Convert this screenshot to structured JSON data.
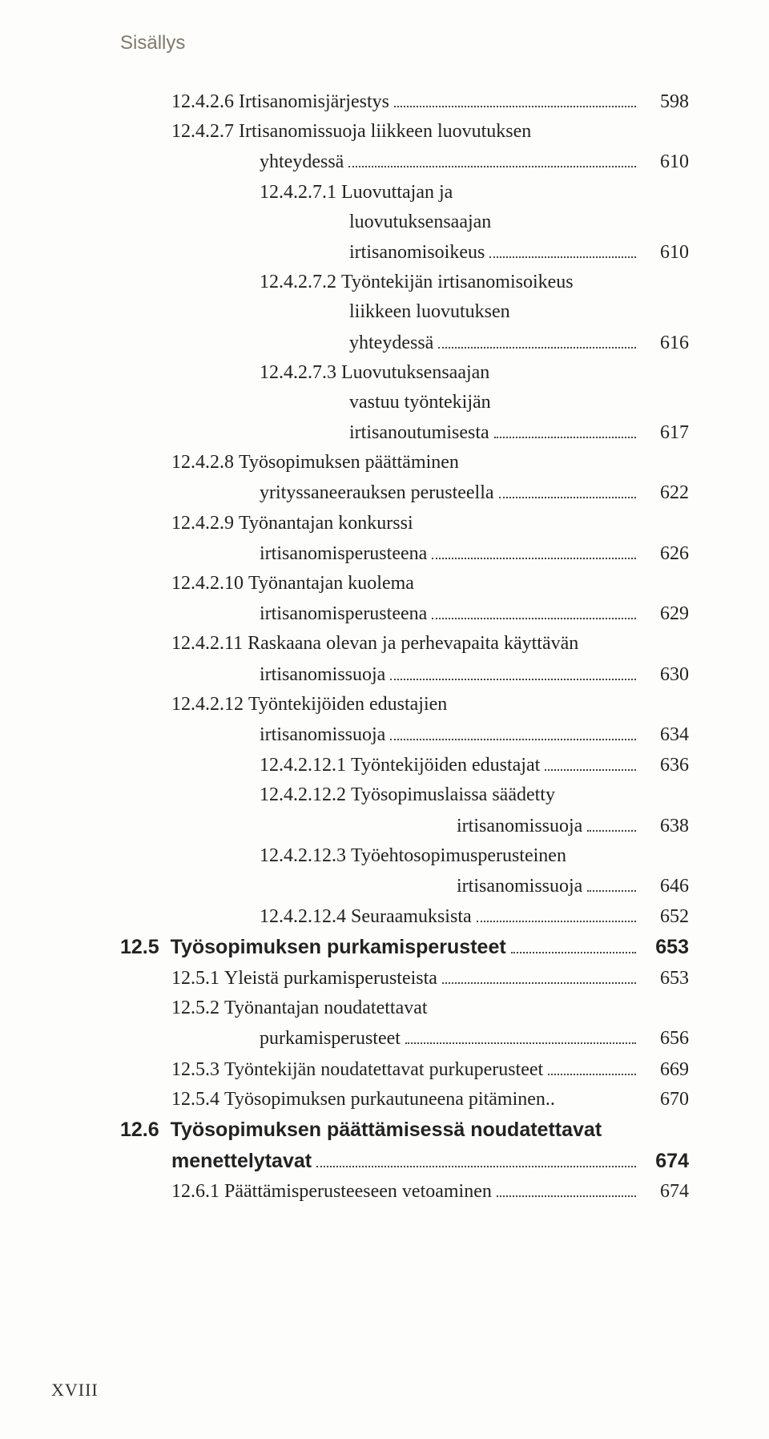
{
  "running_head": "Sisällys",
  "folio": "XVIII",
  "entries": [
    {
      "type": "item",
      "indent": 1,
      "num": "12.4.2.6",
      "label": "Irtisanomisjärjestys",
      "page": "598"
    },
    {
      "type": "item",
      "indent": 1,
      "num": "12.4.2.7",
      "label": "Irtisanomissuoja liikkeen luovutuksen"
    },
    {
      "type": "cont",
      "indent": 1,
      "label": "yhteydessä",
      "page": "610"
    },
    {
      "type": "item",
      "indent": 2,
      "num": "12.4.2.7.1",
      "label": "Luovuttajan ja"
    },
    {
      "type": "cont",
      "indent": 2,
      "label": "luovutuksensaajan"
    },
    {
      "type": "cont",
      "indent": 2,
      "label": "irtisanomisoikeus",
      "page": "610"
    },
    {
      "type": "item",
      "indent": 2,
      "num": "12.4.2.7.2",
      "label": "Työntekijän irtisanomisoikeus"
    },
    {
      "type": "cont",
      "indent": 2,
      "label": "liikkeen luovutuksen"
    },
    {
      "type": "cont",
      "indent": 2,
      "label": "yhteydessä",
      "page": "616"
    },
    {
      "type": "item",
      "indent": 2,
      "num": "12.4.2.7.3",
      "label": "Luovutuksensaajan"
    },
    {
      "type": "cont",
      "indent": 2,
      "label": "vastuu työntekijän"
    },
    {
      "type": "cont",
      "indent": 2,
      "label": "irtisanoutumisesta",
      "page": "617"
    },
    {
      "type": "item",
      "indent": 1,
      "num": "12.4.2.8",
      "label": "Työsopimuksen päättäminen"
    },
    {
      "type": "cont",
      "indent": 1,
      "label": "yrityssaneerauksen perusteella",
      "page": "622"
    },
    {
      "type": "item",
      "indent": 1,
      "num": "12.4.2.9",
      "label": "Työnantajan konkurssi"
    },
    {
      "type": "cont",
      "indent": 1,
      "label": "irtisanomisperusteena",
      "page": "626"
    },
    {
      "type": "item",
      "indent": 1,
      "num": "12.4.2.10",
      "label": "Työnantajan kuolema"
    },
    {
      "type": "cont",
      "indent": 1,
      "label": "irtisanomisperusteena",
      "page": "629"
    },
    {
      "type": "item",
      "indent": 1,
      "num": "12.4.2.11",
      "label": "Raskaana olevan ja perhevapaita käyttävän"
    },
    {
      "type": "cont",
      "indent": 1,
      "label": "irtisanomissuoja",
      "page": "630"
    },
    {
      "type": "item",
      "indent": 1,
      "num": "12.4.2.12",
      "label": "Työntekijöiden edustajien"
    },
    {
      "type": "cont",
      "indent": 1,
      "label": "irtisanomissuoja",
      "page": "634"
    },
    {
      "type": "item",
      "indent": 2,
      "num": "12.4.2.12.1",
      "label": "Työntekijöiden edustajat",
      "page": "636"
    },
    {
      "type": "item",
      "indent": 2,
      "num": "12.4.2.12.2",
      "label": "Työsopimuslaissa säädetty"
    },
    {
      "type": "cont",
      "indent": 3,
      "label": "irtisanomissuoja",
      "page": "638"
    },
    {
      "type": "item",
      "indent": 2,
      "num": "12.4.2.12.3",
      "label": "Työehtosopimusperusteinen"
    },
    {
      "type": "cont",
      "indent": 3,
      "label": "irtisanomissuoja",
      "page": "646"
    },
    {
      "type": "item",
      "indent": 2,
      "num": "12.4.2.12.4",
      "label": "Seuraamuksista",
      "page": "652"
    },
    {
      "type": "section",
      "num": "12.5",
      "label": "Työsopimuksen purkamisperusteet",
      "page": "653"
    },
    {
      "type": "item",
      "indent": 1,
      "num": "12.5.1",
      "label": "Yleistä purkamisperusteista",
      "page": "653"
    },
    {
      "type": "item",
      "indent": 1,
      "num": "12.5.2",
      "label": "Työnantajan noudatettavat"
    },
    {
      "type": "cont",
      "indent": 1,
      "label": "purkamisperusteet",
      "page": "656"
    },
    {
      "type": "item",
      "indent": 1,
      "num": "12.5.3",
      "label": "Työntekijän noudatettavat purkuperusteet",
      "page": "669"
    },
    {
      "type": "item",
      "indent": 1,
      "num": "12.5.4",
      "label": "Työsopimuksen purkautuneena pitäminen",
      "shortdots": true,
      "page": "670"
    },
    {
      "type": "section",
      "num": "12.6",
      "label": "Työsopimuksen päättämisessä noudatettavat"
    },
    {
      "type": "section-cont",
      "label": "menettelytavat",
      "page": "674"
    },
    {
      "type": "item",
      "indent": 1,
      "num": "12.6.1",
      "label": "Päättämisperusteeseen vetoaminen",
      "page": "674"
    }
  ]
}
